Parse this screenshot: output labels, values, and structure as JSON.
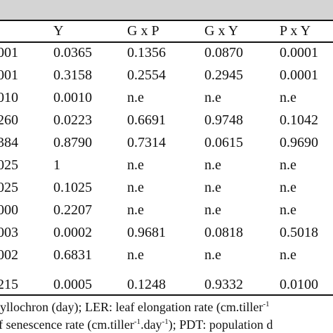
{
  "table": {
    "headers": [
      "Y",
      "G x P",
      "G x Y",
      "P x Y"
    ],
    "rows": [
      {
        "first": "001",
        "cells": [
          "0.0365",
          "0.1356",
          "0.0870",
          "0.0001"
        ]
      },
      {
        "first": "001",
        "cells": [
          "0.3158",
          "0.2554",
          "0.2945",
          "0.0001"
        ]
      },
      {
        "first": "010",
        "cells": [
          "0.0010",
          "n.e",
          "n.e",
          "n.e"
        ]
      },
      {
        "first": "260",
        "cells": [
          "0.0223",
          "0.6691",
          "0.9748",
          "0.1042"
        ]
      },
      {
        "first": "384",
        "cells": [
          "0.8790",
          "0.7314",
          "0.0615",
          "0.9690"
        ]
      },
      {
        "first": "025",
        "cells": [
          "1",
          "n.e",
          "n.e",
          "n.e"
        ]
      },
      {
        "first": "025",
        "cells": [
          "0.1025",
          "n.e",
          "n.e",
          "n.e"
        ]
      },
      {
        "first": "000",
        "cells": [
          "0.2207",
          "n.e",
          "n.e",
          "n.e"
        ]
      },
      {
        "first": "003",
        "cells": [
          "0.0002",
          "0.9681",
          "0.0818",
          "0.5018"
        ]
      },
      {
        "first": "002",
        "cells": [
          "0.6831",
          "n.e",
          "n.e",
          "n.e"
        ]
      },
      {
        "first": "215",
        "cells": [
          "0.0005",
          "0.1248",
          "0.9332",
          "0.0100"
        ]
      }
    ]
  },
  "footnote": {
    "line1": "yllochron (day); LER: leaf elongation rate (cm.tiller",
    "line1_sup": "-1",
    "line1_tail": "",
    "line2_a": "f senescence rate (cm.tiller",
    "line2_sup1": "-1",
    "line2_b": ".day",
    "line2_sup2": "-1",
    "line2_c": "); PDT: population d"
  }
}
